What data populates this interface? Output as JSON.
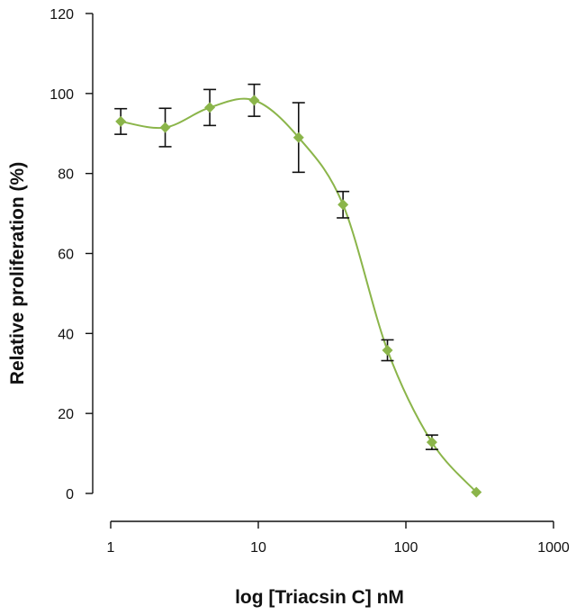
{
  "chart_data": {
    "type": "scatter",
    "title": "",
    "xlabel": "log [Triacsin C] nM",
    "ylabel": "Relative proliferation (%)",
    "x_scale": "log",
    "xlim": [
      1,
      1000
    ],
    "ylim": [
      0,
      120
    ],
    "x_ticks": [
      1,
      10,
      100,
      1000
    ],
    "x_tick_labels": [
      "1",
      "10",
      "100",
      "1000"
    ],
    "y_ticks": [
      0,
      20,
      40,
      60,
      80,
      100,
      120
    ],
    "y_tick_labels": [
      "0",
      "20",
      "40",
      "60",
      "80",
      "100",
      "120"
    ],
    "grid": false,
    "legend": "none",
    "color": "#8bb54a",
    "series": [
      {
        "x": [
          1.17,
          2.34,
          4.69,
          9.38,
          18.75,
          37.5,
          75,
          150,
          300
        ],
        "y": [
          93,
          91.5,
          96.5,
          98.3,
          89,
          72.2,
          35.8,
          12.8,
          0.3
        ],
        "error": [
          3.2,
          4.8,
          4.5,
          4,
          8.7,
          3.3,
          2.6,
          1.8,
          0
        ]
      }
    ]
  }
}
